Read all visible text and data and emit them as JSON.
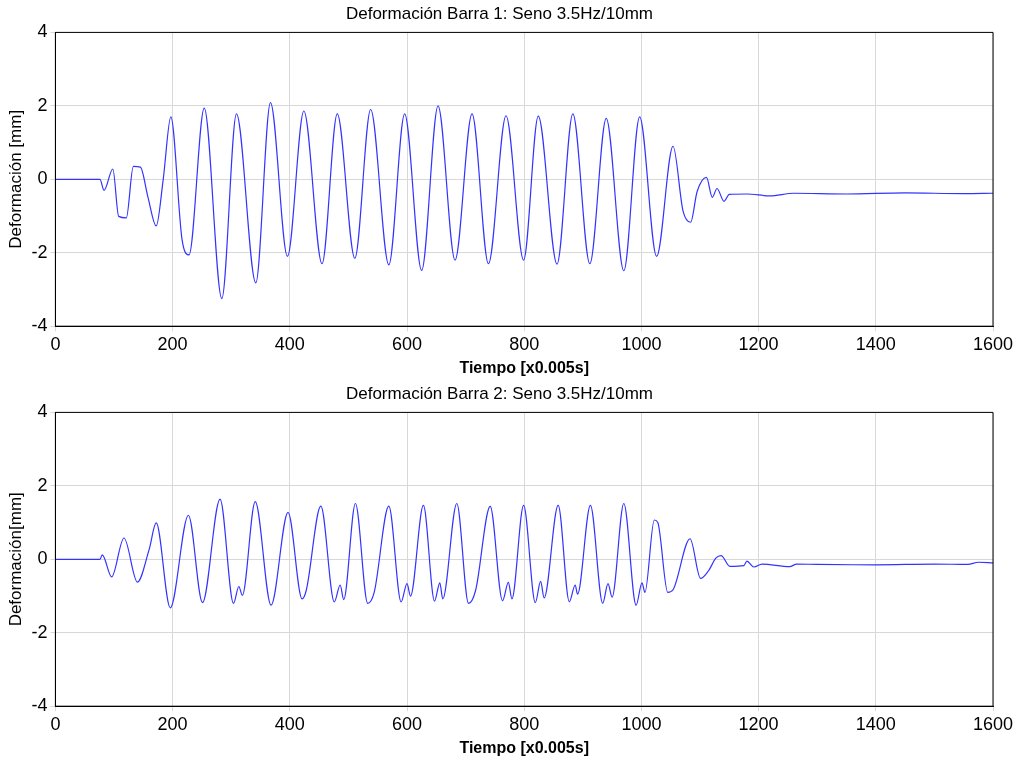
{
  "chart_data": [
    {
      "type": "line",
      "title": "Deformación Barra 1: Seno 3.5Hz/10mm",
      "xlabel": "Tiempo [x0.005s]",
      "ylabel": "Deformación [mm]",
      "xlim": [
        0,
        1600
      ],
      "ylim": [
        -4,
        4
      ],
      "xticks": [
        0,
        200,
        400,
        600,
        800,
        1000,
        1200,
        1400,
        1600
      ],
      "yticks": [
        -4,
        -2,
        0,
        2,
        4
      ],
      "grid": true,
      "x": [
        0,
        40,
        76,
        83,
        98,
        108,
        121,
        133,
        145,
        158,
        172,
        184,
        197,
        216,
        228,
        254,
        284,
        309,
        342,
        367,
        396,
        424,
        455,
        481,
        511,
        538,
        569,
        596,
        625,
        653,
        682,
        711,
        739,
        769,
        799,
        824,
        856,
        883,
        912,
        940,
        970,
        997,
        1026,
        1054,
        1071,
        1084,
        1095,
        1111,
        1121,
        1129,
        1141,
        1150,
        1180,
        1219,
        1260,
        1350,
        1450,
        1550,
        1600
      ],
      "series": [
        {
          "color": "#3333ff",
          "values": [
            0,
            0,
            0,
            -0.3,
            0.28,
            -1.01,
            -1.05,
            0.35,
            0.33,
            -0.49,
            -1.27,
            0,
            1.7,
            -1.63,
            -2.06,
            1.94,
            -3.25,
            1.78,
            -2.82,
            2.09,
            -2.1,
            1.86,
            -2.3,
            1.78,
            -2.15,
            1.9,
            -2.33,
            1.78,
            -2.48,
            2.0,
            -2.2,
            1.78,
            -2.3,
            1.73,
            -2.2,
            1.72,
            -2.31,
            1.78,
            -2.3,
            1.66,
            -2.49,
            1.7,
            -2.1,
            0.9,
            -0.86,
            -1.17,
            -0.34,
            0.05,
            -0.49,
            -0.25,
            -0.6,
            -0.41,
            -0.4,
            -0.45,
            -0.38,
            -0.4,
            -0.37,
            -0.39,
            -0.38
          ]
        }
      ]
    },
    {
      "type": "line",
      "title": "Deformación Barra 2: Seno 3.5Hz/10mm",
      "xlabel": "Tiempo [x0.005s]",
      "ylabel": "Deformación[mm]",
      "xlim": [
        0,
        1600
      ],
      "ylim": [
        -4,
        4
      ],
      "xticks": [
        0,
        200,
        400,
        600,
        800,
        1000,
        1200,
        1400,
        1600
      ],
      "yticks": [
        -4,
        -2,
        0,
        2,
        4
      ],
      "grid": true,
      "x": [
        0,
        40,
        76,
        80,
        96,
        117,
        140,
        160,
        172,
        196,
        227,
        251,
        281,
        304,
        313,
        319,
        341,
        368,
        397,
        421,
        428,
        453,
        476,
        486,
        492,
        512,
        533,
        544,
        569,
        590,
        600,
        606,
        628,
        647,
        656,
        661,
        685,
        705,
        717,
        742,
        763,
        773,
        779,
        799,
        819,
        828,
        834,
        858,
        877,
        887,
        891,
        913,
        934,
        943,
        950,
        970,
        991,
        1001,
        1006,
        1022,
        1028,
        1045,
        1054,
        1083,
        1101,
        1115,
        1127,
        1136,
        1151,
        1175,
        1180,
        1192,
        1206,
        1253,
        1265,
        1300,
        1400,
        1500,
        1557,
        1575,
        1600
      ],
      "series": [
        {
          "color": "#3333ff",
          "values": [
            0,
            0,
            0,
            0.12,
            -0.48,
            0.58,
            -0.62,
            0.27,
            0.99,
            -1.32,
            1.2,
            -1.18,
            1.64,
            -1.2,
            -0.74,
            -0.98,
            1.57,
            -1.25,
            1.28,
            -1.08,
            -0.85,
            1.45,
            -1.16,
            -0.7,
            -1.1,
            1.52,
            -1.2,
            -0.9,
            1.45,
            -1.16,
            -0.66,
            -1.0,
            1.47,
            -1.14,
            -0.64,
            -1.08,
            1.52,
            -1.2,
            -0.85,
            1.44,
            -1.13,
            -0.63,
            -1.08,
            1.47,
            -1.18,
            -0.6,
            -1.05,
            1.47,
            -1.16,
            -0.7,
            -0.95,
            1.47,
            -1.2,
            -0.66,
            -1.03,
            1.52,
            -1.25,
            -0.64,
            -0.9,
            1.07,
            1.0,
            -0.9,
            -0.83,
            0.56,
            -0.52,
            -0.3,
            0.03,
            0.1,
            -0.19,
            -0.17,
            -0.05,
            -0.21,
            -0.13,
            -0.2,
            -0.13,
            -0.14,
            -0.15,
            -0.13,
            -0.14,
            -0.08,
            -0.1
          ]
        }
      ]
    }
  ]
}
